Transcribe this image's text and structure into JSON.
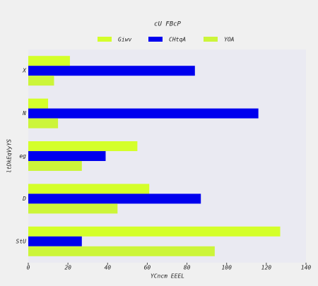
{
  "chart_data": {
    "type": "hbar",
    "title": "cU FBcP",
    "x_label": "YCncm EEEL",
    "y_label": "ltDkEqVyYS",
    "categories": [
      "X",
      "N",
      "eg",
      "D",
      "StU"
    ],
    "series": [
      {
        "name": "Giwv",
        "color": "#d4ff2a",
        "values": [
          21,
          10,
          55,
          61,
          127
        ]
      },
      {
        "name": "CHtqA",
        "color": "#0000ee",
        "values": [
          84,
          116,
          39,
          87,
          27
        ]
      },
      {
        "name": "YOA",
        "color": "#ccf53a",
        "values": [
          13,
          15,
          27,
          45,
          94
        ]
      }
    ],
    "xlim": [
      0,
      140
    ],
    "xticks": [
      0,
      20,
      40,
      60,
      80,
      100,
      120,
      140
    ]
  }
}
